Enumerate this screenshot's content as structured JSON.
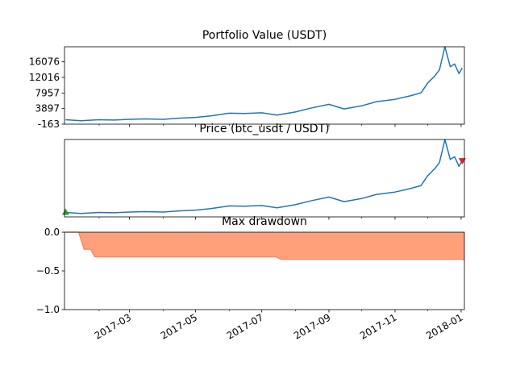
{
  "chart_data": [
    {
      "type": "line",
      "title": "Portfolio Value (USDT)",
      "xlabel": "",
      "ylabel": "",
      "x": [
        "2017-01-01",
        "2017-01-15",
        "2017-02-01",
        "2017-02-15",
        "2017-03-01",
        "2017-03-15",
        "2017-04-01",
        "2017-04-15",
        "2017-05-01",
        "2017-05-15",
        "2017-06-01",
        "2017-06-15",
        "2017-07-01",
        "2017-07-15",
        "2017-08-01",
        "2017-08-15",
        "2017-09-01",
        "2017-09-15",
        "2017-10-01",
        "2017-10-15",
        "2017-11-01",
        "2017-11-15",
        "2017-11-25",
        "2017-12-01",
        "2017-12-08",
        "2017-12-12",
        "2017-12-17",
        "2017-12-22",
        "2017-12-26",
        "2017-12-30",
        "2018-01-02"
      ],
      "series": [
        {
          "values": [
            1000,
            750,
            1000,
            900,
            1100,
            1200,
            1100,
            1400,
            1600,
            2000,
            2700,
            2600,
            2800,
            2200,
            3000,
            4000,
            5000,
            3800,
            4600,
            5700,
            6300,
            7200,
            8000,
            10500,
            12500,
            14000,
            20000,
            14800,
            15500,
            13000,
            14500
          ]
        }
      ],
      "ylim": [
        -163,
        20000
      ],
      "yticks": [
        "-163",
        "3897",
        "7957",
        "12016",
        "16076"
      ],
      "ytick_values": [
        -163,
        3897,
        7957,
        12016,
        16076
      ],
      "color": "#1f77b4"
    },
    {
      "type": "line",
      "title": "Price (btc_usdt / USDT)",
      "xlabel": "",
      "ylabel": "",
      "x": [
        "2017-01-01",
        "2017-01-15",
        "2017-02-01",
        "2017-02-15",
        "2017-03-01",
        "2017-03-15",
        "2017-04-01",
        "2017-04-15",
        "2017-05-01",
        "2017-05-15",
        "2017-06-01",
        "2017-06-15",
        "2017-07-01",
        "2017-07-15",
        "2017-08-01",
        "2017-08-15",
        "2017-09-01",
        "2017-09-15",
        "2017-10-01",
        "2017-10-15",
        "2017-11-01",
        "2017-11-15",
        "2017-11-25",
        "2017-12-01",
        "2017-12-08",
        "2017-12-12",
        "2017-12-17",
        "2017-12-22",
        "2017-12-26",
        "2017-12-30",
        "2018-01-02"
      ],
      "series": [
        {
          "values": [
            1000,
            750,
            1000,
            900,
            1100,
            1200,
            1100,
            1400,
            1600,
            2000,
            2700,
            2600,
            2800,
            2200,
            3000,
            4000,
            5000,
            3800,
            4600,
            5700,
            6300,
            7200,
            8000,
            10500,
            12500,
            14000,
            20000,
            14800,
            15500,
            13000,
            14500
          ]
        }
      ],
      "ylim": [
        -163,
        20000
      ],
      "color": "#1f77b4",
      "markers": [
        {
          "kind": "buy",
          "x": "2017-01-01",
          "y": 1000,
          "color": "#2ca02c"
        },
        {
          "kind": "sell",
          "x": "2018-01-02",
          "y": 14500,
          "color": "#d62728"
        }
      ]
    },
    {
      "type": "area",
      "title": "Max drawdown",
      "xlabel": "",
      "ylabel": "",
      "x": [
        "2017-01-01",
        "2017-01-13",
        "2017-01-18",
        "2017-01-24",
        "2017-01-28",
        "2017-07-14",
        "2017-07-19",
        "2018-01-01",
        "2018-01-04"
      ],
      "series": [
        {
          "values": [
            0.0,
            0.0,
            -0.22,
            -0.22,
            -0.32,
            -0.32,
            -0.35,
            -0.35,
            -0.36
          ]
        }
      ],
      "ylim": [
        -1.0,
        0.0
      ],
      "yticks": [
        "0.0",
        "−0.5",
        "−1.0"
      ],
      "ytick_values": [
        0.0,
        -0.5,
        -1.0
      ],
      "fill": "#ffa07a",
      "stroke": "#f4845f"
    }
  ],
  "x_axis": {
    "range": [
      "2016-12-31",
      "2018-01-04"
    ],
    "major_ticks": [
      "2017-03-01",
      "2017-05-01",
      "2017-07-01",
      "2017-09-01",
      "2017-11-01",
      "2018-01-01"
    ],
    "major_labels": [
      "2017-03",
      "2017-05",
      "2017-07",
      "2017-09",
      "2017-11",
      "2018-01"
    ],
    "minor_ticks": [
      "2017-02-01",
      "2017-04-01",
      "2017-06-01",
      "2017-08-01",
      "2017-10-01",
      "2017-12-01"
    ]
  }
}
